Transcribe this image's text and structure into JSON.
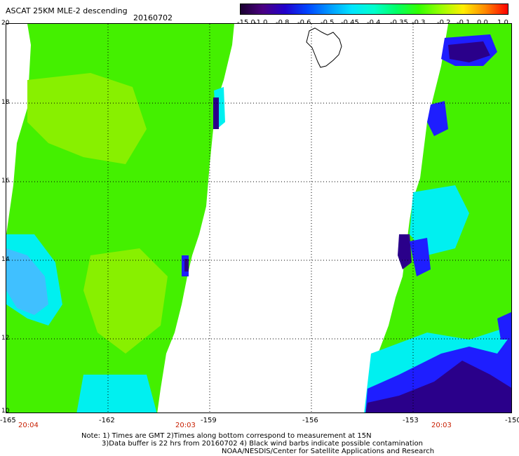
{
  "header": {
    "title": "ASCAT 25KM MLE-2 descending",
    "date": "20160702"
  },
  "colorbar": {
    "labels": [
      "-15.0",
      "-1.0",
      "-0.8",
      "-0.6",
      "-0.5",
      "-0.45",
      "-0.4",
      "-0.35",
      "-0.3",
      "-0.2",
      "-0.1",
      "0.0",
      "1.0"
    ],
    "colors": [
      "#1a0030",
      "#4b0082",
      "#2200cc",
      "#0044ff",
      "#0099ff",
      "#00e5ff",
      "#00ffcc",
      "#00ff66",
      "#33ff00",
      "#99ff00",
      "#ffee00",
      "#ff8800",
      "#ff0000"
    ]
  },
  "map": {
    "lat_labels": [
      "20",
      "18",
      "16",
      "14",
      "12",
      "10"
    ],
    "lon_labels": [
      "-165",
      "-162",
      "-159",
      "-156",
      "-153",
      "-150"
    ],
    "time_labels": [
      "20:04",
      "20:03",
      "20:03"
    ],
    "swath_colors": {
      "green": "#44f000",
      "yellowgreen": "#88f000",
      "cyan": "#00f0f0",
      "lightblue": "#40c0ff",
      "blue": "#1e1eff",
      "navy": "#2a008a",
      "ocean_background": "#ffffff",
      "island_outline": "#000000",
      "grid": "#000000"
    }
  },
  "notes": {
    "line1": "Note: 1) Times are GMT 2)Times along bottom correspond to measurement at 15N",
    "line2": "3)Data buffer is 22 hrs from 20160702 4) Black wind barbs indicate possible contamination",
    "line3": "NOAA/NESDIS/Center for Satellite Applications and Research"
  }
}
